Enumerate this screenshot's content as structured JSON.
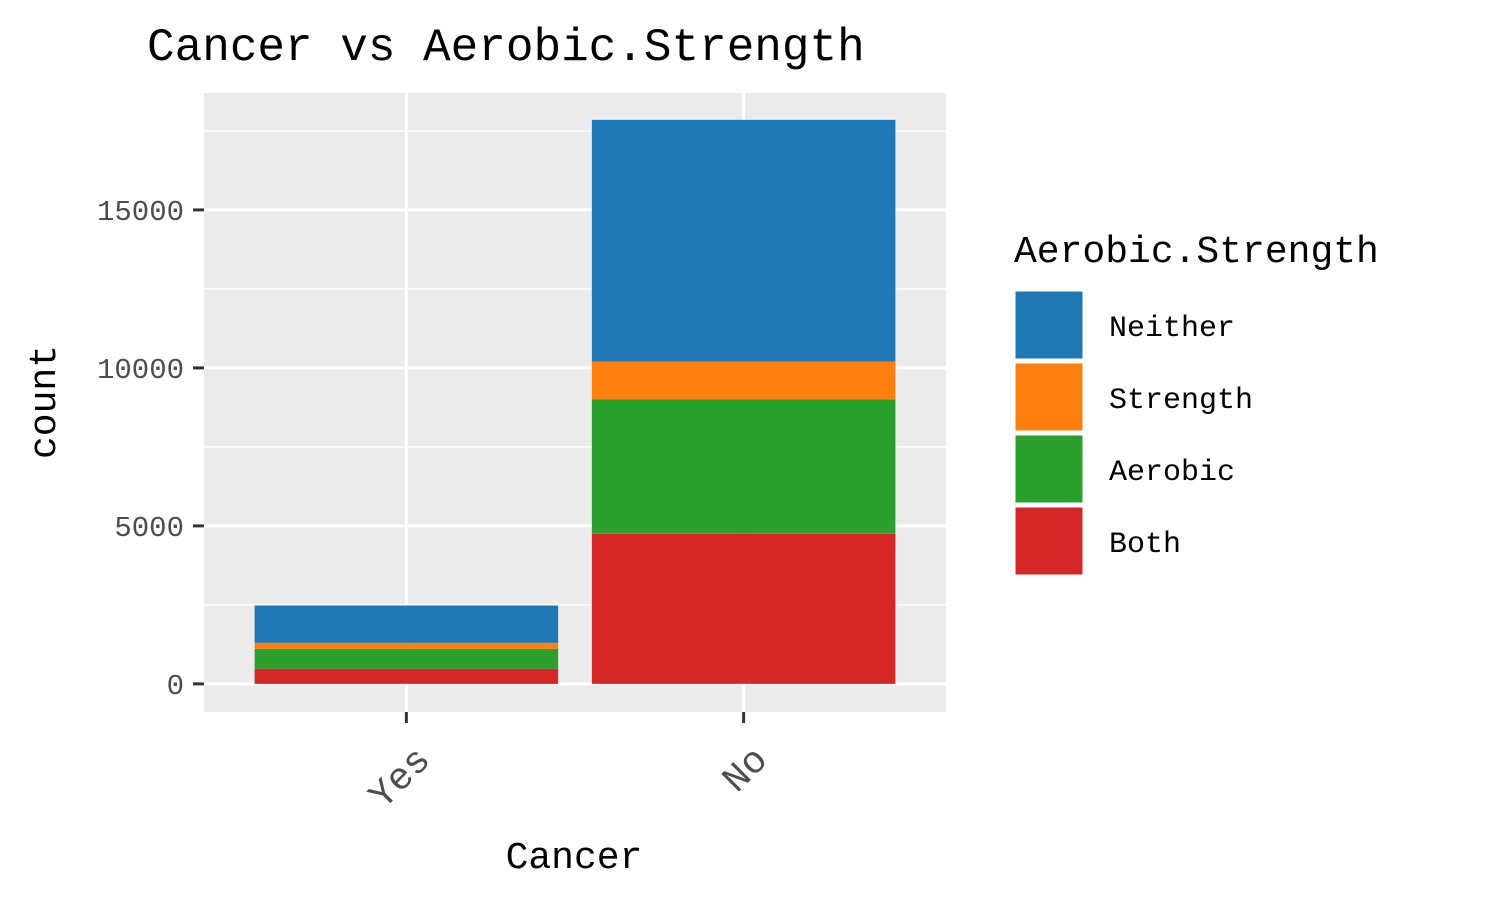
{
  "chart_data": {
    "type": "bar",
    "stacked": true,
    "title": "Cancer vs Aerobic.Strength",
    "xlabel": "Cancer",
    "ylabel": "count",
    "categories": [
      "Yes",
      "No"
    ],
    "series": [
      {
        "name": "Both",
        "values": [
          480,
          4750
        ],
        "color": "#d62728"
      },
      {
        "name": "Aerobic",
        "values": [
          630,
          4250
        ],
        "color": "#2ca02c"
      },
      {
        "name": "Strength",
        "values": [
          190,
          1200
        ],
        "color": "#ff7f0e"
      },
      {
        "name": "Neither",
        "values": [
          1180,
          7650
        ],
        "color": "#1f77b4"
      }
    ],
    "legend_order": [
      "Neither",
      "Strength",
      "Aerobic",
      "Both"
    ],
    "legend_title": "Aerobic.Strength",
    "legend_position": "right",
    "yticks": [
      0,
      5000,
      10000,
      15000
    ],
    "ytick_labels": [
      "0",
      "5000",
      "10000",
      "15000"
    ],
    "ylim": [
      -890,
      18700
    ],
    "grid": true,
    "panel_background": "#ebebeb",
    "grid_color": "#ffffff"
  }
}
